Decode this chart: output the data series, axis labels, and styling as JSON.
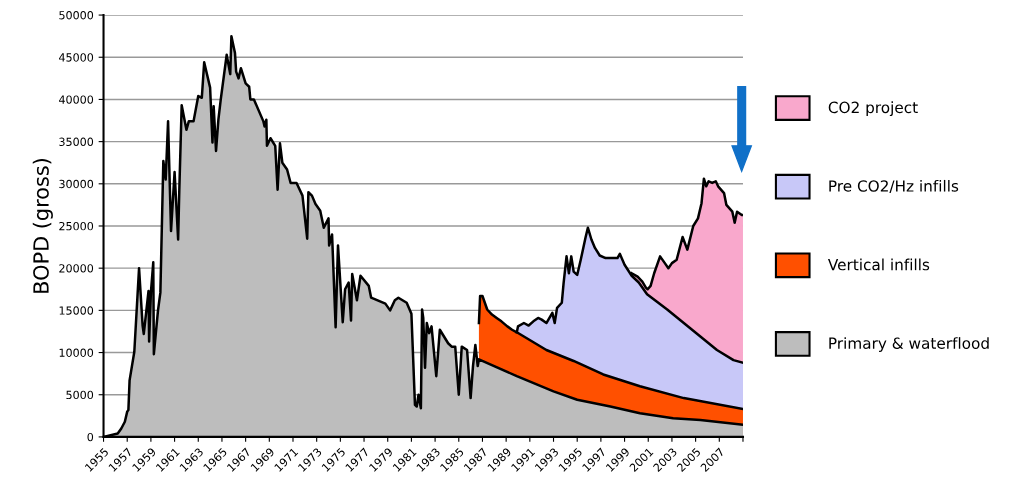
{
  "chart_data": {
    "type": "area",
    "ylabel": "BOPD (gross)",
    "xlim": [
      1955,
      2009
    ],
    "ylim": [
      0,
      50000
    ],
    "xticks": [
      1955,
      1957,
      1959,
      1961,
      1963,
      1965,
      1967,
      1969,
      1971,
      1973,
      1975,
      1977,
      1979,
      1981,
      1983,
      1985,
      1987,
      1989,
      1991,
      1993,
      1995,
      1997,
      1999,
      2001,
      2003,
      2005,
      2007,
      {
        "value": 2009,
        "label": null
      }
    ],
    "yticks": [
      0,
      5000,
      10000,
      15000,
      20000,
      25000,
      30000,
      35000,
      40000,
      45000,
      50000
    ],
    "grid": "y",
    "legend": "right",
    "series": [
      {
        "name": "CO2 project",
        "color": "#f9a8cc",
        "x": [
          1999.6,
          2000.1,
          2000.5,
          2000.8,
          2000.95,
          2001.2,
          2001.5,
          2002.0,
          2002.4,
          2002.7,
          2003.0,
          2003.4,
          2003.9,
          2004.3,
          2004.8,
          2005.2,
          2005.5,
          2005.7,
          2005.9,
          2006.1,
          2006.4,
          2006.7,
          2006.9,
          2007.4,
          2007.6,
          2008.1,
          2008.3,
          2008.5,
          2008.9,
          2009
        ],
        "values": [
          19400,
          19000,
          18400,
          17700,
          17500,
          17900,
          19400,
          21400,
          20600,
          20000,
          20600,
          21000,
          23700,
          22200,
          25000,
          25900,
          27700,
          30600,
          29700,
          30300,
          30100,
          30300,
          29700,
          28900,
          27500,
          26700,
          25400,
          26700,
          26300,
          26300
        ]
      },
      {
        "name": "Pre CO2/Hz infills",
        "color": "#c8c8f8",
        "x": [
          1989.9,
          1990.0,
          1990.5,
          1990.9,
          1991.3,
          1991.7,
          1992.0,
          1992.4,
          1992.9,
          1993.1,
          1993.3,
          1993.7,
          1993.85,
          1994.1,
          1994.3,
          1994.5,
          1994.7,
          1995.0,
          1995.3,
          1995.7,
          1995.9,
          1996.2,
          1996.5,
          1996.9,
          1997.4,
          1998.4,
          1998.6,
          1999.0,
          1999.6,
          2000.2,
          2000.9,
          2002.6,
          2004.0,
          2005.4,
          2006.8,
          2008.2,
          2009
        ],
        "values": [
          12400,
          13100,
          13500,
          13200,
          13700,
          14100,
          13900,
          13500,
          14700,
          13500,
          15300,
          15900,
          18200,
          21400,
          19400,
          21400,
          19600,
          19200,
          21000,
          23600,
          24800,
          23400,
          22400,
          21500,
          21200,
          21200,
          21700,
          20400,
          19100,
          18300,
          16900,
          15100,
          13500,
          11900,
          10300,
          9100,
          8800
        ]
      },
      {
        "name": "Vertical infills",
        "color": "#ff5000",
        "x": [
          1986.7,
          1986.8,
          1987.0,
          1987.4,
          1987.8,
          1988.2,
          1988.6,
          1989.1,
          1989.5,
          1989.9,
          1992.4,
          1994.7,
          1997.2,
          2000.3,
          2004.0,
          2009
        ],
        "values": [
          13500,
          16700,
          16700,
          15100,
          14500,
          14100,
          13700,
          13100,
          12700,
          12400,
          10300,
          9000,
          7400,
          6000,
          4600,
          3300
        ]
      },
      {
        "name": "Primary & waterflood",
        "color": "#bdbdbd",
        "x": [
          1955,
          1956.2,
          1956.5,
          1956.8,
          1957.0,
          1957.1,
          1957.2,
          1957.6,
          1958.0,
          1958.3,
          1958.4,
          1958.8,
          1958.85,
          1959.0,
          1959.2,
          1959.25,
          1959.6,
          1959.8,
          1960.05,
          1960.25,
          1960.45,
          1960.7,
          1961.0,
          1961.3,
          1961.4,
          1961.6,
          1962.0,
          1962.2,
          1962.6,
          1963.0,
          1963.3,
          1963.5,
          1964.0,
          1964.2,
          1964.3,
          1964.5,
          1964.7,
          1964.9,
          1965.4,
          1965.7,
          1965.8,
          1966.1,
          1966.2,
          1966.4,
          1966.6,
          1967.0,
          1967.3,
          1967.4,
          1967.7,
          1968.5,
          1968.6,
          1968.75,
          1968.8,
          1969.1,
          1969.5,
          1969.7,
          1969.9,
          1970.1,
          1970.5,
          1970.8,
          1971.3,
          1971.8,
          1972.2,
          1972.3,
          1972.6,
          1972.9,
          1973.3,
          1973.6,
          1974.0,
          1974.05,
          1974.3,
          1974.6,
          1974.8,
          1975.2,
          1975.4,
          1975.7,
          1975.9,
          1976.0,
          1976.4,
          1976.7,
          1977.4,
          1977.6,
          1978.8,
          1979.2,
          1979.6,
          1979.9,
          1980.6,
          1981.0,
          1981.3,
          1981.45,
          1981.6,
          1981.8,
          1981.9,
          1982.0,
          1982.15,
          1982.3,
          1982.5,
          1982.7,
          1983.1,
          1983.4,
          1984.1,
          1984.4,
          1984.7,
          1985.0,
          1985.25,
          1985.7,
          1986.0,
          1986.2,
          1986.4,
          1986.6,
          1986.7,
          1989.9,
          1993.0,
          1995.0,
          1997.8,
          2000.3,
          2003.1,
          2005.4,
          2009
        ],
        "values": [
          0,
          400,
          1000,
          1800,
          3000,
          3200,
          6700,
          10100,
          20000,
          13200,
          12200,
          17300,
          11300,
          17100,
          20700,
          9800,
          15000,
          17100,
          32700,
          30500,
          37400,
          24400,
          31400,
          23400,
          29300,
          39300,
          36400,
          37400,
          37400,
          40400,
          40200,
          44400,
          41400,
          34900,
          39200,
          33900,
          37600,
          40000,
          45300,
          43000,
          47500,
          45500,
          43300,
          42500,
          43700,
          41900,
          41500,
          40000,
          40000,
          37400,
          36800,
          37600,
          34500,
          35400,
          34500,
          29300,
          34800,
          32500,
          31700,
          30100,
          30100,
          28600,
          23500,
          29000,
          28600,
          27600,
          26800,
          24800,
          25900,
          22700,
          24000,
          13000,
          22700,
          13600,
          17500,
          18300,
          13800,
          19300,
          16200,
          19100,
          17900,
          16500,
          15800,
          15000,
          16200,
          16500,
          15900,
          14600,
          3800,
          3600,
          5000,
          3400,
          15100,
          14100,
          8200,
          13500,
          12300,
          13100,
          7200,
          12700,
          11100,
          10700,
          10700,
          5000,
          10700,
          10300,
          4600,
          8400,
          10900,
          8400,
          9200,
          7200,
          5400,
          4400,
          3600,
          2800,
          2200,
          2000,
          1450
        ]
      }
    ]
  }
}
